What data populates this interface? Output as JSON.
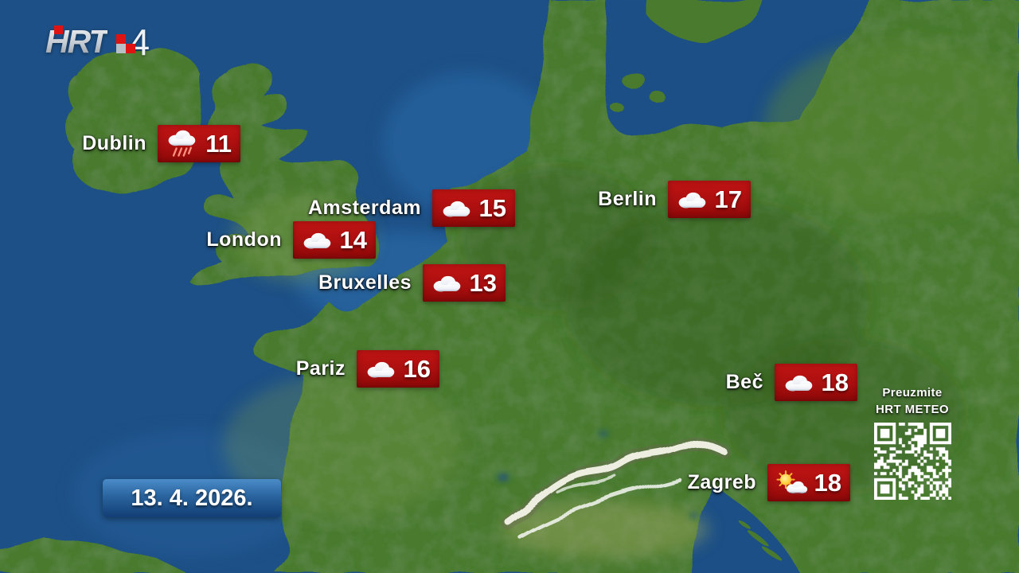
{
  "channel": {
    "name": "HRT",
    "number": "4"
  },
  "date_box": {
    "date": "13. 4. 2026."
  },
  "cities": [
    {
      "name": "Dublin",
      "temp": "11",
      "icon": "rain"
    },
    {
      "name": "Berlin",
      "temp": "17",
      "icon": "cloudy"
    },
    {
      "name": "Amsterdam",
      "temp": "15",
      "icon": "cloudy"
    },
    {
      "name": "London",
      "temp": "14",
      "icon": "cloudy"
    },
    {
      "name": "Bruxelles",
      "temp": "13",
      "icon": "cloudy"
    },
    {
      "name": "Pariz",
      "temp": "16",
      "icon": "cloudy"
    },
    {
      "name": "Beč",
      "temp": "18",
      "icon": "cloudy"
    },
    {
      "name": "Zagreb",
      "temp": "18",
      "icon": "partly-sunny"
    }
  ],
  "promo": {
    "line1": "Preuzmite",
    "line2": "HRT METEO"
  },
  "colors": {
    "label_red": "#ab0f0f",
    "date_blue": "#2a649f",
    "sea": "#1d5086",
    "land": "#4a7a2d"
  }
}
